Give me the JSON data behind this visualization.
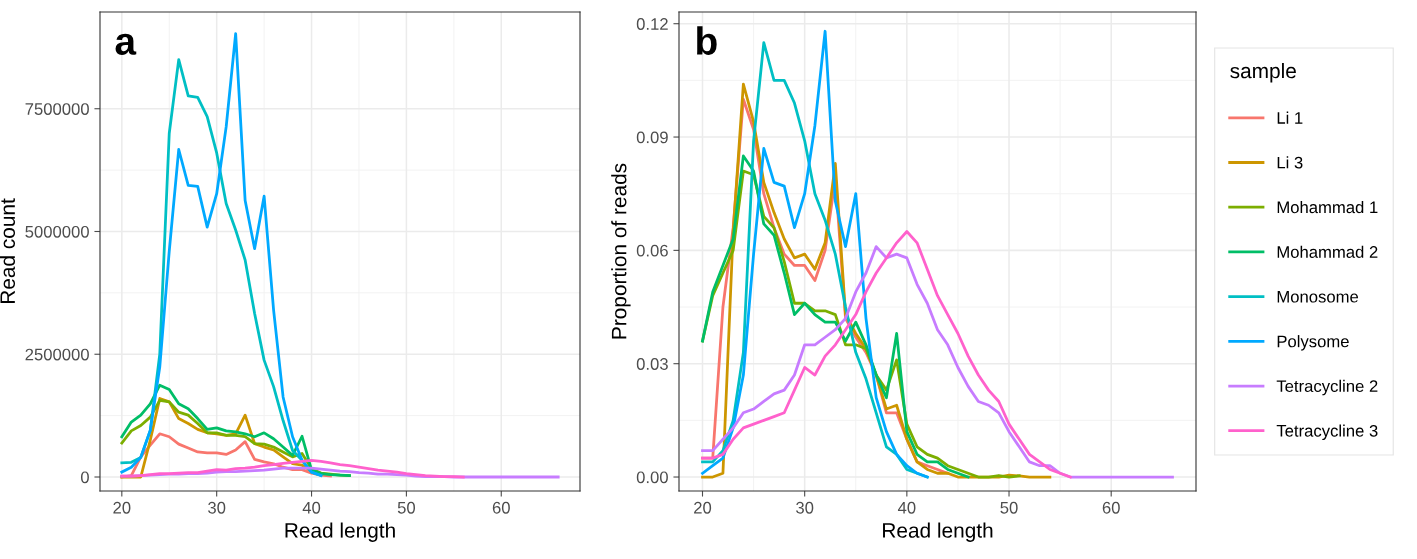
{
  "chart_data": [
    {
      "type": "line",
      "title": "a",
      "xlabel": "Read length",
      "ylabel": "Read count",
      "xlim": [
        17.7,
        68.3
      ],
      "ylim": [
        -285000,
        9470000
      ],
      "xticks": [
        20,
        30,
        40,
        50,
        60
      ],
      "yticks": [
        0,
        2500000,
        5000000,
        7500000
      ],
      "grid": true,
      "line_style": "solid",
      "series": [
        {
          "color": "#F8766D",
          "x": [
            20,
            21,
            22,
            23,
            24,
            25,
            26,
            27,
            28,
            29,
            30,
            31,
            32,
            33,
            34,
            35,
            36,
            37,
            38,
            39,
            40,
            41,
            42
          ],
          "values": [
            0,
            30000,
            410000,
            650000,
            880000,
            820000,
            670000,
            590000,
            510000,
            490000,
            490000,
            460000,
            550000,
            720000,
            360000,
            310000,
            270000,
            200000,
            150000,
            150000,
            80000,
            40000,
            20000
          ]
        },
        {
          "color": "#CD9600",
          "x": [
            20,
            21,
            22,
            23,
            24,
            25,
            26,
            27,
            28,
            29,
            30,
            31,
            32,
            33,
            34,
            35,
            36,
            37,
            38,
            39,
            40,
            41
          ],
          "values": [
            0,
            0,
            0,
            750000,
            1600000,
            1530000,
            1190000,
            1090000,
            970000,
            900000,
            880000,
            850000,
            880000,
            1260000,
            680000,
            610000,
            550000,
            410000,
            270000,
            240000,
            120000,
            60000
          ]
        },
        {
          "color": "#7CAE00",
          "x": [
            20,
            21,
            22,
            23,
            24,
            25,
            26,
            27,
            28,
            29,
            30,
            31,
            32,
            33,
            34,
            35,
            36,
            37,
            38,
            39,
            40,
            41,
            42,
            43,
            44
          ],
          "values": [
            690000,
            940000,
            1050000,
            1220000,
            1560000,
            1530000,
            1320000,
            1260000,
            1090000,
            900000,
            900000,
            850000,
            850000,
            820000,
            680000,
            670000,
            610000,
            510000,
            410000,
            480000,
            170000,
            80000,
            60000,
            40000,
            30000
          ]
        },
        {
          "color": "#00BE67",
          "x": [
            20,
            21,
            22,
            23,
            24,
            25,
            26,
            27,
            28,
            29,
            30,
            31,
            32,
            33,
            34,
            35,
            36,
            37,
            38,
            39,
            40,
            41,
            42,
            43,
            44
          ],
          "values": [
            820000,
            1120000,
            1260000,
            1490000,
            1870000,
            1780000,
            1490000,
            1390000,
            1190000,
            970000,
            1000000,
            940000,
            920000,
            880000,
            820000,
            900000,
            780000,
            610000,
            440000,
            830000,
            140000,
            70000,
            50000,
            40000,
            30000
          ]
        },
        {
          "color": "#00BFC4",
          "x": [
            20,
            21,
            22,
            23,
            24,
            25,
            26,
            27,
            28,
            29,
            30,
            31,
            32,
            33,
            34,
            35,
            36,
            37,
            38,
            39,
            40,
            41
          ],
          "values": [
            290000,
            300000,
            400000,
            950000,
            2500000,
            7000000,
            8500000,
            7760000,
            7730000,
            7340000,
            6600000,
            5570000,
            5030000,
            4420000,
            3330000,
            2380000,
            1840000,
            1150000,
            540000,
            340000,
            100000,
            30000
          ]
        },
        {
          "color": "#00A9FF",
          "x": [
            20,
            21,
            22,
            23,
            24,
            25,
            26,
            27,
            28,
            29,
            30,
            31,
            32,
            33,
            34,
            35,
            36,
            37,
            38,
            39,
            40,
            41
          ],
          "values": [
            100000,
            200000,
            400000,
            950000,
            2240000,
            4600000,
            6670000,
            5940000,
            5920000,
            5090000,
            5770000,
            7130000,
            9030000,
            5630000,
            4650000,
            5720000,
            3400000,
            1630000,
            820000,
            340000,
            100000,
            30000
          ]
        },
        {
          "color": "#C77CFF",
          "x": [
            20,
            21,
            22,
            23,
            24,
            25,
            26,
            27,
            28,
            29,
            30,
            31,
            32,
            33,
            34,
            35,
            36,
            37,
            38,
            39,
            40,
            41,
            42,
            43,
            44,
            45,
            46,
            47,
            48,
            49,
            50,
            51,
            52,
            53,
            54,
            55,
            56,
            57,
            58,
            59,
            60,
            61,
            62,
            63,
            64,
            65,
            66
          ],
          "values": [
            20000,
            20000,
            30000,
            40000,
            50000,
            60000,
            60000,
            70000,
            70000,
            80000,
            100000,
            110000,
            110000,
            120000,
            130000,
            140000,
            160000,
            180000,
            180000,
            180000,
            180000,
            160000,
            140000,
            120000,
            110000,
            90000,
            80000,
            60000,
            60000,
            50000,
            40000,
            20000,
            10000,
            10000,
            10000,
            0,
            0,
            0,
            0,
            0,
            0,
            0,
            0,
            0,
            0,
            0,
            0
          ]
        },
        {
          "color": "#FF61CC",
          "x": [
            20,
            21,
            22,
            23,
            24,
            25,
            26,
            27,
            28,
            29,
            30,
            31,
            32,
            33,
            34,
            35,
            36,
            37,
            38,
            39,
            40,
            41,
            42,
            43,
            44,
            45,
            46,
            47,
            48,
            49,
            50,
            51,
            52,
            53,
            54,
            55,
            56
          ],
          "values": [
            20000,
            20000,
            30000,
            50000,
            70000,
            70000,
            80000,
            90000,
            90000,
            120000,
            150000,
            140000,
            170000,
            180000,
            200000,
            230000,
            250000,
            280000,
            300000,
            320000,
            340000,
            320000,
            290000,
            250000,
            230000,
            200000,
            170000,
            140000,
            120000,
            100000,
            70000,
            50000,
            30000,
            20000,
            10000,
            10000,
            0
          ]
        }
      ]
    },
    {
      "type": "line",
      "title": "b",
      "xlabel": "Read length",
      "ylabel": "Proportion of reads",
      "legend_title": "sample",
      "xlim": [
        17.7,
        68.3
      ],
      "ylim": [
        -0.0037,
        0.1231
      ],
      "xticks": [
        20,
        30,
        40,
        50,
        60
      ],
      "yticks": [
        {
          "value": 0,
          "label": "0.00"
        },
        0.03,
        0.06,
        0.09,
        0.12
      ],
      "grid": true,
      "legend": "right",
      "line_style": "solid",
      "series": [
        {
          "name": "Li 1",
          "color": "#F8766D",
          "x": [
            20,
            21,
            22,
            23,
            24,
            25,
            26,
            27,
            28,
            29,
            30,
            31,
            32,
            33,
            34,
            35,
            36,
            37,
            38,
            39,
            40,
            41,
            42,
            43,
            44
          ],
          "values": [
            0.005,
            0.005,
            0.045,
            0.066,
            0.1,
            0.092,
            0.075,
            0.066,
            0.059,
            0.056,
            0.056,
            0.052,
            0.06,
            0.079,
            0.042,
            0.037,
            0.033,
            0.027,
            0.017,
            0.017,
            0.01,
            0.004,
            0.003,
            0.002,
            0.001
          ]
        },
        {
          "name": "Li 3",
          "color": "#CD9600",
          "x": [
            20,
            21,
            22,
            23,
            24,
            25,
            26,
            27,
            28,
            29,
            30,
            31,
            32,
            33,
            34,
            35,
            36,
            37,
            38,
            39,
            40,
            41,
            42,
            43,
            44,
            45,
            46,
            47,
            48,
            49,
            50,
            51,
            52,
            53,
            54
          ],
          "values": [
            0,
            0,
            0.001,
            0.065,
            0.104,
            0.094,
            0.078,
            0.07,
            0.063,
            0.058,
            0.059,
            0.055,
            0.062,
            0.083,
            0.043,
            0.038,
            0.034,
            0.027,
            0.018,
            0.019,
            0.01,
            0.004,
            0.002,
            0.001,
            0.001,
            0,
            0,
            0,
            0,
            0,
            0.0005,
            0.0003,
            0,
            0,
            0
          ]
        },
        {
          "name": "Mohammad 1",
          "color": "#7CAE00",
          "x": [
            20,
            21,
            22,
            23,
            24,
            25,
            26,
            27,
            28,
            29,
            30,
            31,
            32,
            33,
            34,
            35,
            36,
            37,
            38,
            39,
            40,
            41,
            42,
            43,
            44,
            45,
            46,
            47,
            48,
            49,
            50,
            51
          ],
          "values": [
            0.036,
            0.048,
            0.054,
            0.06,
            0.081,
            0.08,
            0.069,
            0.066,
            0.057,
            0.046,
            0.046,
            0.044,
            0.044,
            0.043,
            0.035,
            0.035,
            0.034,
            0.027,
            0.023,
            0.031,
            0.014,
            0.008,
            0.006,
            0.005,
            0.003,
            0.002,
            0.001,
            0,
            0,
            0.0004,
            0,
            0.0003
          ]
        },
        {
          "name": "Mohammad 2",
          "color": "#00BE67",
          "x": [
            20,
            21,
            22,
            23,
            24,
            25,
            26,
            27,
            28,
            29,
            30,
            31,
            32,
            33,
            34,
            35,
            36,
            37,
            38,
            39,
            40,
            41,
            42,
            43,
            44,
            45,
            46
          ],
          "values": [
            0.036,
            0.049,
            0.056,
            0.063,
            0.085,
            0.081,
            0.067,
            0.064,
            0.054,
            0.043,
            0.046,
            0.043,
            0.041,
            0.041,
            0.036,
            0.041,
            0.035,
            0.027,
            0.021,
            0.038,
            0.012,
            0.006,
            0.004,
            0.004,
            0.002,
            0.001,
            0
          ]
        },
        {
          "name": "Monosome",
          "color": "#00BFC4",
          "x": [
            20,
            21,
            22,
            23,
            24,
            25,
            26,
            27,
            28,
            29,
            30,
            31,
            32,
            33,
            34,
            35,
            36,
            37,
            38,
            39,
            40,
            41,
            42
          ],
          "values": [
            0.004,
            0.004,
            0.007,
            0.015,
            0.033,
            0.089,
            0.115,
            0.105,
            0.105,
            0.099,
            0.089,
            0.075,
            0.068,
            0.059,
            0.045,
            0.033,
            0.026,
            0.017,
            0.008,
            0.006,
            0.002,
            0.001,
            0
          ]
        },
        {
          "name": "Polysome",
          "color": "#00A9FF",
          "x": [
            20,
            21,
            22,
            23,
            24,
            25,
            26,
            27,
            28,
            29,
            30,
            31,
            32,
            33,
            34,
            35,
            36,
            37,
            38,
            39,
            40,
            41,
            42
          ],
          "values": [
            0.001,
            0.003,
            0.005,
            0.013,
            0.027,
            0.059,
            0.087,
            0.078,
            0.077,
            0.066,
            0.075,
            0.093,
            0.118,
            0.073,
            0.061,
            0.075,
            0.042,
            0.021,
            0.012,
            0.006,
            0.003,
            0.001,
            0
          ]
        },
        {
          "name": "Tetracycline 2",
          "color": "#C77CFF",
          "x": [
            20,
            21,
            22,
            23,
            24,
            25,
            26,
            27,
            28,
            29,
            30,
            31,
            32,
            33,
            34,
            35,
            36,
            37,
            38,
            39,
            40,
            41,
            42,
            43,
            44,
            45,
            46,
            47,
            48,
            49,
            50,
            51,
            52,
            53,
            54,
            55,
            56,
            57,
            58,
            59,
            60,
            61,
            62,
            63,
            64,
            65,
            66
          ],
          "values": [
            0.007,
            0.007,
            0.01,
            0.013,
            0.017,
            0.018,
            0.02,
            0.022,
            0.023,
            0.027,
            0.035,
            0.035,
            0.037,
            0.039,
            0.042,
            0.049,
            0.054,
            0.061,
            0.058,
            0.059,
            0.058,
            0.051,
            0.046,
            0.039,
            0.035,
            0.029,
            0.024,
            0.02,
            0.019,
            0.017,
            0.012,
            0.008,
            0.004,
            0.003,
            0.003,
            0.001,
            0,
            0,
            0,
            0,
            0,
            0,
            0,
            0,
            0,
            0,
            0
          ]
        },
        {
          "name": "Tetracycline 3",
          "color": "#FF61CC",
          "x": [
            20,
            21,
            22,
            23,
            24,
            25,
            26,
            27,
            28,
            29,
            30,
            31,
            32,
            33,
            34,
            35,
            36,
            37,
            38,
            39,
            40,
            41,
            42,
            43,
            44,
            45,
            46,
            47,
            48,
            49,
            50,
            51,
            52,
            53,
            54,
            55,
            56
          ],
          "values": [
            0.005,
            0.005,
            0.006,
            0.01,
            0.013,
            0.014,
            0.015,
            0.016,
            0.017,
            0.023,
            0.029,
            0.027,
            0.032,
            0.035,
            0.039,
            0.043,
            0.049,
            0.054,
            0.058,
            0.062,
            0.065,
            0.062,
            0.055,
            0.048,
            0.043,
            0.038,
            0.032,
            0.027,
            0.023,
            0.02,
            0.014,
            0.01,
            0.006,
            0.004,
            0.002,
            0.001,
            0
          ]
        }
      ]
    }
  ]
}
